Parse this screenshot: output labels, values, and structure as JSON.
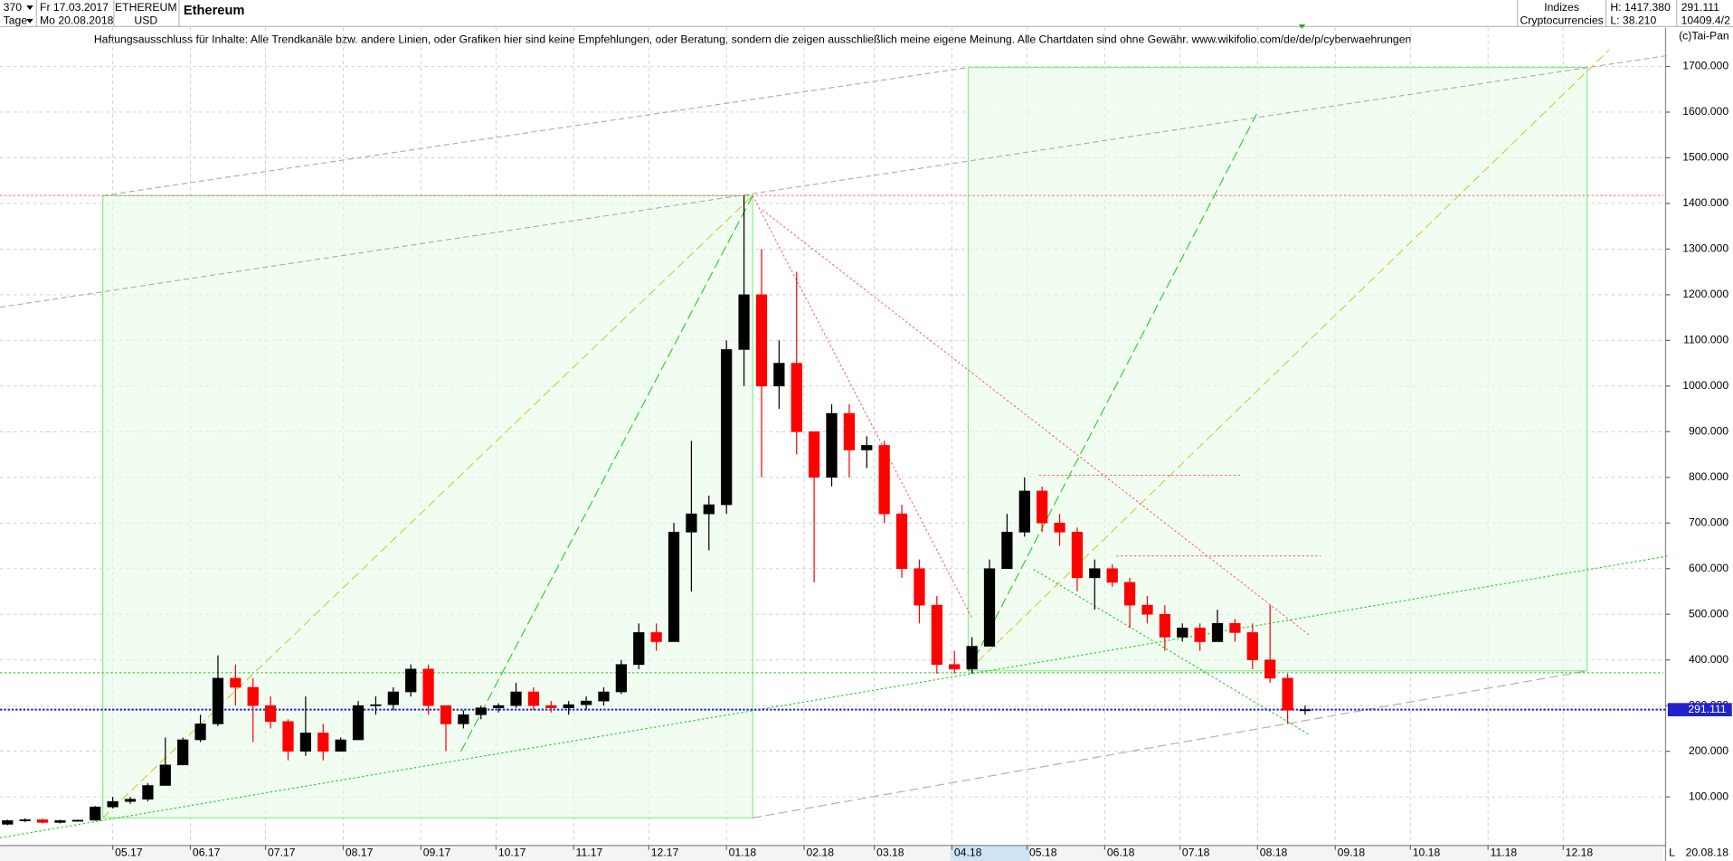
{
  "header": {
    "period": "370",
    "start": "Fr 17.03.2017",
    "unit": "Tage",
    "end": "Mo 20.08.2018",
    "symbol": "ETHEREUM",
    "currency": "USD",
    "name": "Ethereum",
    "group": "Indizes",
    "category": "Cryptocurrencies",
    "high": "H: 1417.380",
    "low": "L: 38.210",
    "extra": "10409.4/2",
    "copyright": "(c)Tai-Pan",
    "disclaimer": "Haftungsausschluss für Inhalte: Alle Trendkanäle bzw. andere Linien, oder Grafiken hier sind keine Empfehlungen, oder Beratung, sondern die zeigen ausschließlich meine eigene Meinung. Alle Chartdaten sind ohne Gewähr.  www.wikifolio.com/de/de/p/cyberwaehrungen",
    "scale_mode": "L",
    "last_date": "20.08.18"
  },
  "chart_data": {
    "type": "candlestick",
    "up_color": "#000000",
    "down_color": "#ff0000",
    "grid": true,
    "current_price": 291.111,
    "current_color": "#2222cc",
    "hlines": [
      {
        "value": 1417.38,
        "color": "#ff7070"
      },
      {
        "value": 372,
        "color": "#33cc33"
      }
    ],
    "xlim": [
      "2017-03-17",
      "2019-01-10"
    ],
    "ylim": [
      -4,
      1785
    ],
    "xticks": [
      {
        "value": "2017-05-01",
        "label": "05.17"
      },
      {
        "value": "2017-06-01",
        "label": "06.17"
      },
      {
        "value": "2017-07-01",
        "label": "07.17"
      },
      {
        "value": "2017-08-01",
        "label": "08.17"
      },
      {
        "value": "2017-09-01",
        "label": "09.17"
      },
      {
        "value": "2017-10-01",
        "label": "10.17"
      },
      {
        "value": "2017-11-01",
        "label": "11.17"
      },
      {
        "value": "2017-12-01",
        "label": "12.17"
      },
      {
        "value": "2018-01-01",
        "label": "01.18"
      },
      {
        "value": "2018-02-01",
        "label": "02.18"
      },
      {
        "value": "2018-03-01",
        "label": "03.18"
      },
      {
        "value": "2018-04-01",
        "label": "04.18"
      },
      {
        "value": "2018-05-01",
        "label": "05.18"
      },
      {
        "value": "2018-06-01",
        "label": "06.18"
      },
      {
        "value": "2018-07-01",
        "label": "07.18"
      },
      {
        "value": "2018-08-01",
        "label": "08.18"
      },
      {
        "value": "2018-09-01",
        "label": "09.18"
      },
      {
        "value": "2018-10-01",
        "label": "10.18"
      },
      {
        "value": "2018-11-01",
        "label": "11.18"
      },
      {
        "value": "2018-12-01",
        "label": "12.18"
      }
    ],
    "yticks": [
      {
        "value": 100,
        "label": "100.000"
      },
      {
        "value": 200,
        "label": "200.000"
      },
      {
        "value": 300,
        "label": "300.000"
      },
      {
        "value": 400,
        "label": "400.000"
      },
      {
        "value": 500,
        "label": "500.000"
      },
      {
        "value": 600,
        "label": "600.000"
      },
      {
        "value": 700,
        "label": "700.000"
      },
      {
        "value": 800,
        "label": "800.000"
      },
      {
        "value": 900,
        "label": "900.000"
      },
      {
        "value": 1000,
        "label": "1000.000"
      },
      {
        "value": 1100,
        "label": "1100.000"
      },
      {
        "value": 1200,
        "label": "1200.000"
      },
      {
        "value": 1300,
        "label": "1300.000"
      },
      {
        "value": 1400,
        "label": "1400.000"
      },
      {
        "value": 1500,
        "label": "1500.000"
      },
      {
        "value": 1600,
        "label": "1600.000"
      },
      {
        "value": 1700,
        "label": "1700.000"
      }
    ],
    "candles": [
      {
        "x": "2017-03-20",
        "open": 40,
        "high": 50,
        "low": 38,
        "close": 48
      },
      {
        "x": "2017-03-27",
        "open": 48,
        "high": 53,
        "low": 45,
        "close": 50
      },
      {
        "x": "2017-04-03",
        "open": 50,
        "high": 52,
        "low": 42,
        "close": 44
      },
      {
        "x": "2017-04-10",
        "open": 44,
        "high": 50,
        "low": 42,
        "close": 48
      },
      {
        "x": "2017-04-17",
        "open": 48,
        "high": 50,
        "low": 46,
        "close": 49
      },
      {
        "x": "2017-04-24",
        "open": 49,
        "high": 80,
        "low": 48,
        "close": 78
      },
      {
        "x": "2017-05-01",
        "open": 78,
        "high": 100,
        "low": 75,
        "close": 90
      },
      {
        "x": "2017-05-08",
        "open": 90,
        "high": 100,
        "low": 85,
        "close": 95
      },
      {
        "x": "2017-05-15",
        "open": 95,
        "high": 130,
        "low": 90,
        "close": 125
      },
      {
        "x": "2017-05-22",
        "open": 125,
        "high": 230,
        "low": 125,
        "close": 170
      },
      {
        "x": "2017-05-29",
        "open": 170,
        "high": 230,
        "low": 170,
        "close": 225
      },
      {
        "x": "2017-06-05",
        "open": 225,
        "high": 280,
        "low": 220,
        "close": 260
      },
      {
        "x": "2017-06-12",
        "open": 260,
        "high": 410,
        "low": 255,
        "close": 360
      },
      {
        "x": "2017-06-19",
        "open": 360,
        "high": 390,
        "low": 300,
        "close": 340
      },
      {
        "x": "2017-06-26",
        "open": 340,
        "high": 360,
        "low": 220,
        "close": 300
      },
      {
        "x": "2017-07-03",
        "open": 300,
        "high": 320,
        "low": 250,
        "close": 265
      },
      {
        "x": "2017-07-10",
        "open": 265,
        "high": 270,
        "low": 180,
        "close": 200
      },
      {
        "x": "2017-07-17",
        "open": 200,
        "high": 320,
        "low": 190,
        "close": 240
      },
      {
        "x": "2017-07-24",
        "open": 240,
        "high": 260,
        "low": 180,
        "close": 200
      },
      {
        "x": "2017-07-31",
        "open": 200,
        "high": 230,
        "low": 200,
        "close": 225
      },
      {
        "x": "2017-08-07",
        "open": 225,
        "high": 310,
        "low": 225,
        "close": 300
      },
      {
        "x": "2017-08-14",
        "open": 300,
        "high": 320,
        "low": 280,
        "close": 302
      },
      {
        "x": "2017-08-21",
        "open": 302,
        "high": 340,
        "low": 290,
        "close": 330
      },
      {
        "x": "2017-08-28",
        "open": 330,
        "high": 390,
        "low": 320,
        "close": 380
      },
      {
        "x": "2017-09-04",
        "open": 380,
        "high": 390,
        "low": 280,
        "close": 300
      },
      {
        "x": "2017-09-11",
        "open": 300,
        "high": 300,
        "low": 200,
        "close": 260
      },
      {
        "x": "2017-09-18",
        "open": 260,
        "high": 290,
        "low": 250,
        "close": 280
      },
      {
        "x": "2017-09-25",
        "open": 280,
        "high": 300,
        "low": 270,
        "close": 295
      },
      {
        "x": "2017-10-02",
        "open": 295,
        "high": 305,
        "low": 285,
        "close": 300
      },
      {
        "x": "2017-10-09",
        "open": 300,
        "high": 350,
        "low": 295,
        "close": 330
      },
      {
        "x": "2017-10-16",
        "open": 330,
        "high": 340,
        "low": 290,
        "close": 300
      },
      {
        "x": "2017-10-23",
        "open": 300,
        "high": 310,
        "low": 285,
        "close": 295
      },
      {
        "x": "2017-10-30",
        "open": 295,
        "high": 310,
        "low": 280,
        "close": 302
      },
      {
        "x": "2017-11-06",
        "open": 302,
        "high": 320,
        "low": 290,
        "close": 310
      },
      {
        "x": "2017-11-13",
        "open": 310,
        "high": 340,
        "low": 300,
        "close": 330
      },
      {
        "x": "2017-11-20",
        "open": 330,
        "high": 400,
        "low": 325,
        "close": 390
      },
      {
        "x": "2017-11-27",
        "open": 390,
        "high": 480,
        "low": 380,
        "close": 460
      },
      {
        "x": "2017-12-04",
        "open": 460,
        "high": 480,
        "low": 420,
        "close": 440
      },
      {
        "x": "2017-12-11",
        "open": 440,
        "high": 700,
        "low": 440,
        "close": 680
      },
      {
        "x": "2017-12-18",
        "open": 680,
        "high": 880,
        "low": 550,
        "close": 720
      },
      {
        "x": "2017-12-25",
        "open": 720,
        "high": 760,
        "low": 640,
        "close": 740
      },
      {
        "x": "2018-01-01",
        "open": 740,
        "high": 1100,
        "low": 720,
        "close": 1080
      },
      {
        "x": "2018-01-08",
        "open": 1080,
        "high": 1417,
        "low": 1000,
        "close": 1200
      },
      {
        "x": "2018-01-15",
        "open": 1200,
        "high": 1300,
        "low": 800,
        "close": 1000
      },
      {
        "x": "2018-01-22",
        "open": 1000,
        "high": 1100,
        "low": 950,
        "close": 1050
      },
      {
        "x": "2018-01-29",
        "open": 1050,
        "high": 1250,
        "low": 850,
        "close": 900
      },
      {
        "x": "2018-02-05",
        "open": 900,
        "high": 900,
        "low": 570,
        "close": 800
      },
      {
        "x": "2018-02-12",
        "open": 800,
        "high": 960,
        "low": 780,
        "close": 940
      },
      {
        "x": "2018-02-19",
        "open": 940,
        "high": 960,
        "low": 800,
        "close": 860
      },
      {
        "x": "2018-02-26",
        "open": 860,
        "high": 890,
        "low": 820,
        "close": 870
      },
      {
        "x": "2018-03-05",
        "open": 870,
        "high": 880,
        "low": 700,
        "close": 720
      },
      {
        "x": "2018-03-12",
        "open": 720,
        "high": 740,
        "low": 580,
        "close": 600
      },
      {
        "x": "2018-03-19",
        "open": 600,
        "high": 620,
        "low": 480,
        "close": 520
      },
      {
        "x": "2018-03-26",
        "open": 520,
        "high": 540,
        "low": 370,
        "close": 390
      },
      {
        "x": "2018-04-02",
        "open": 390,
        "high": 420,
        "low": 370,
        "close": 380
      },
      {
        "x": "2018-04-09",
        "open": 380,
        "high": 450,
        "low": 370,
        "close": 430
      },
      {
        "x": "2018-04-16",
        "open": 430,
        "high": 620,
        "low": 430,
        "close": 600
      },
      {
        "x": "2018-04-23",
        "open": 600,
        "high": 720,
        "low": 600,
        "close": 680
      },
      {
        "x": "2018-04-30",
        "open": 680,
        "high": 800,
        "low": 670,
        "close": 770
      },
      {
        "x": "2018-05-07",
        "open": 770,
        "high": 780,
        "low": 680,
        "close": 700
      },
      {
        "x": "2018-05-14",
        "open": 700,
        "high": 720,
        "low": 650,
        "close": 680
      },
      {
        "x": "2018-05-21",
        "open": 680,
        "high": 690,
        "low": 550,
        "close": 580
      },
      {
        "x": "2018-05-28",
        "open": 580,
        "high": 620,
        "low": 510,
        "close": 600
      },
      {
        "x": "2018-06-04",
        "open": 600,
        "high": 610,
        "low": 560,
        "close": 570
      },
      {
        "x": "2018-06-11",
        "open": 570,
        "high": 580,
        "low": 470,
        "close": 520
      },
      {
        "x": "2018-06-18",
        "open": 520,
        "high": 540,
        "low": 480,
        "close": 500
      },
      {
        "x": "2018-06-25",
        "open": 500,
        "high": 520,
        "low": 420,
        "close": 450
      },
      {
        "x": "2018-07-02",
        "open": 450,
        "high": 480,
        "low": 440,
        "close": 470
      },
      {
        "x": "2018-07-09",
        "open": 470,
        "high": 480,
        "low": 420,
        "close": 440
      },
      {
        "x": "2018-07-16",
        "open": 440,
        "high": 510,
        "low": 440,
        "close": 480
      },
      {
        "x": "2018-07-23",
        "open": 480,
        "high": 490,
        "low": 440,
        "close": 460
      },
      {
        "x": "2018-07-30",
        "open": 460,
        "high": 480,
        "low": 380,
        "close": 400
      },
      {
        "x": "2018-08-06",
        "open": 400,
        "high": 520,
        "low": 350,
        "close": 360
      },
      {
        "x": "2018-08-13",
        "open": 360,
        "high": 370,
        "low": 260,
        "close": 290
      },
      {
        "x": "2018-08-20",
        "open": 290,
        "high": 300,
        "low": 280,
        "close": 291.111
      }
    ]
  }
}
